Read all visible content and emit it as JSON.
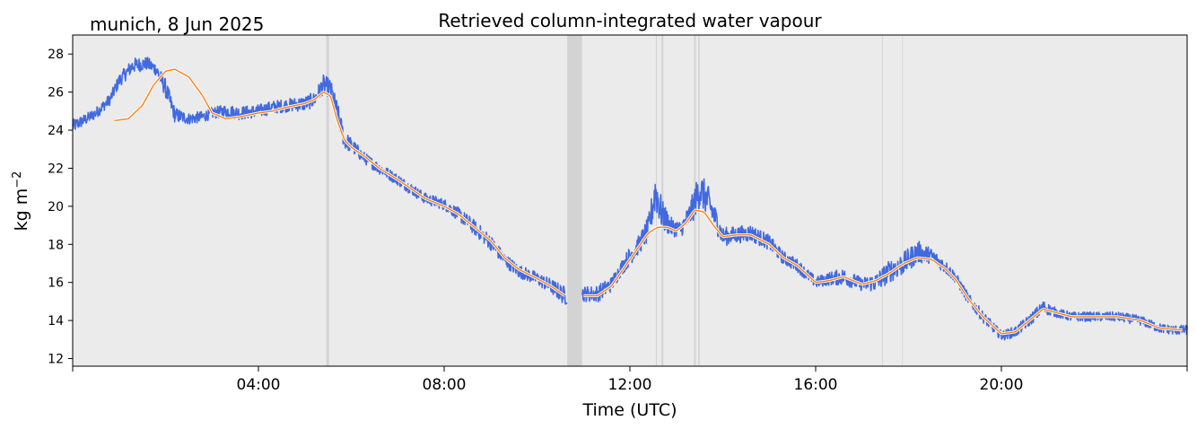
{
  "chart_data": {
    "type": "line",
    "title": "Retrieved column-integrated water vapour",
    "location_label": "munich, 8 Jun 2025",
    "xlabel": "Time (UTC)",
    "ylabel": "kg m",
    "ylabel_sup": "−2",
    "x_unit": "hours UTC",
    "xlim": [
      0,
      24
    ],
    "ylim": [
      11.6,
      29.0
    ],
    "x_ticks": [
      {
        "value": 0,
        "label": ""
      },
      {
        "value": 4,
        "label": "04:00"
      },
      {
        "value": 8,
        "label": "08:00"
      },
      {
        "value": 12,
        "label": "12:00"
      },
      {
        "value": 16,
        "label": "16:00"
      },
      {
        "value": 20,
        "label": "20:00"
      },
      {
        "value": 24,
        "label": ""
      }
    ],
    "y_ticks": [
      12,
      14,
      16,
      18,
      20,
      22,
      24,
      26,
      28
    ],
    "grid": false,
    "background": "#ebebeb",
    "gap_bands": [
      {
        "start": 5.46,
        "end": 5.52,
        "color": "#d3d3d3"
      },
      {
        "start": 10.65,
        "end": 10.97,
        "color": "#d3d3d3"
      },
      {
        "start": 12.56,
        "end": 12.58,
        "color": "#d3d3d3"
      },
      {
        "start": 12.68,
        "end": 12.72,
        "color": "#d3d3d3"
      },
      {
        "start": 13.38,
        "end": 13.42,
        "color": "#d3d3d3"
      },
      {
        "start": 13.47,
        "end": 13.5,
        "color": "#d3d3d3"
      },
      {
        "start": 17.43,
        "end": 17.45,
        "color": "#dadada"
      },
      {
        "start": 17.86,
        "end": 17.88,
        "color": "#dadada"
      }
    ],
    "series": [
      {
        "role": "raw retrievals",
        "color": "#4169e1",
        "x": [
          0.0,
          0.3,
          0.5,
          0.8,
          1.0,
          1.3,
          1.6,
          1.8,
          2.0,
          2.2,
          2.5,
          2.8,
          3.0,
          3.3,
          3.6,
          4.0,
          4.3,
          4.6,
          5.0,
          5.2,
          5.4,
          5.55,
          5.7,
          5.85,
          6.0,
          6.3,
          6.6,
          7.0,
          7.3,
          7.6,
          8.0,
          8.3,
          8.6,
          9.0,
          9.3,
          9.6,
          10.0,
          10.3,
          10.6,
          11.0,
          11.3,
          11.6,
          11.8,
          12.0,
          12.2,
          12.4,
          12.55,
          12.7,
          12.9,
          13.1,
          13.3,
          13.5,
          13.7,
          14.0,
          14.3,
          14.6,
          15.0,
          15.3,
          15.6,
          16.0,
          16.3,
          16.6,
          17.0,
          17.3,
          17.6,
          17.9,
          18.2,
          18.5,
          18.8,
          19.0,
          19.3,
          19.6,
          20.0,
          20.3,
          20.6,
          20.9,
          21.2,
          21.5,
          22.0,
          22.5,
          23.0,
          23.4,
          23.7,
          24.0
        ],
        "y": [
          24.2,
          24.6,
          24.9,
          25.6,
          26.6,
          27.4,
          27.5,
          27.2,
          26.2,
          24.8,
          24.6,
          24.7,
          24.9,
          25.0,
          24.9,
          25.0,
          25.2,
          25.3,
          25.4,
          25.6,
          26.4,
          26.2,
          24.9,
          23.5,
          23.2,
          22.5,
          22.0,
          21.4,
          20.9,
          20.4,
          20.1,
          19.6,
          19.0,
          18.1,
          17.2,
          16.6,
          16.2,
          15.8,
          15.3,
          15.4,
          15.4,
          15.9,
          16.7,
          17.4,
          18.0,
          18.8,
          20.8,
          19.5,
          18.9,
          18.8,
          19.6,
          20.9,
          20.2,
          18.4,
          18.5,
          18.6,
          18.1,
          17.3,
          16.9,
          16.0,
          16.2,
          16.3,
          15.9,
          16.0,
          16.6,
          17.0,
          17.6,
          17.4,
          16.8,
          16.3,
          15.1,
          14.2,
          13.2,
          13.4,
          14.0,
          14.7,
          14.4,
          14.2,
          14.2,
          14.2,
          14.0,
          13.6,
          13.5,
          13.5
        ],
        "noise_amplitude": [
          0.35,
          0.3,
          0.3,
          0.3,
          0.35,
          0.4,
          0.35,
          0.35,
          0.5,
          0.4,
          0.3,
          0.3,
          0.3,
          0.35,
          0.35,
          0.35,
          0.35,
          0.35,
          0.4,
          0.4,
          0.5,
          0.5,
          0.6,
          0.5,
          0.4,
          0.3,
          0.3,
          0.3,
          0.3,
          0.3,
          0.3,
          0.35,
          0.4,
          0.4,
          0.35,
          0.35,
          0.35,
          0.4,
          0.5,
          0.4,
          0.45,
          0.4,
          0.4,
          0.5,
          0.5,
          0.7,
          1.1,
          0.8,
          0.5,
          0.4,
          0.7,
          1.0,
          0.8,
          0.5,
          0.45,
          0.45,
          0.4,
          0.35,
          0.35,
          0.3,
          0.35,
          0.45,
          0.35,
          0.5,
          0.6,
          0.6,
          0.6,
          0.4,
          0.35,
          0.3,
          0.3,
          0.3,
          0.25,
          0.3,
          0.3,
          0.35,
          0.25,
          0.25,
          0.25,
          0.25,
          0.25,
          0.25,
          0.25,
          0.25
        ]
      },
      {
        "role": "smoothed",
        "color": "#ff7f0e",
        "x": [
          0.9,
          1.2,
          1.5,
          1.75,
          2.0,
          2.2,
          2.5,
          2.8,
          3.0,
          3.3,
          3.6,
          4.0,
          4.3,
          4.6,
          5.0,
          5.2,
          5.4,
          5.55,
          5.7,
          5.85,
          6.0,
          6.3,
          6.6,
          7.0,
          7.3,
          7.6,
          8.0,
          8.3,
          8.6,
          9.0,
          9.3,
          9.6,
          10.0,
          10.3,
          10.6
        ],
        "y": [
          24.5,
          24.6,
          25.3,
          26.4,
          27.1,
          27.2,
          26.8,
          25.8,
          24.9,
          24.6,
          24.7,
          24.9,
          25.0,
          25.2,
          25.4,
          25.6,
          26.0,
          25.8,
          24.5,
          23.5,
          23.1,
          22.6,
          22.0,
          21.4,
          20.9,
          20.4,
          20.0,
          19.6,
          19.0,
          18.2,
          17.3,
          16.7,
          16.2,
          15.8,
          15.3
        ]
      },
      {
        "role": "smoothed",
        "color": "#ff7f0e",
        "x": [
          11.0,
          11.3,
          11.6,
          11.8,
          12.0,
          12.2,
          12.4,
          12.6,
          12.8,
          13.0,
          13.2,
          13.4,
          13.6,
          13.8,
          14.0,
          14.3,
          14.6,
          15.0,
          15.3,
          15.6,
          16.0,
          16.3,
          16.6,
          17.0,
          17.3,
          17.6,
          17.9,
          18.2,
          18.5,
          18.8,
          19.0,
          19.3,
          19.6,
          20.0,
          20.3,
          20.6,
          20.9,
          21.2,
          21.5,
          22.0,
          22.5,
          23.0,
          23.4,
          23.9
        ],
        "y": [
          15.3,
          15.3,
          15.8,
          16.5,
          17.2,
          17.9,
          18.6,
          18.9,
          18.9,
          18.7,
          19.1,
          19.8,
          19.7,
          19.0,
          18.4,
          18.5,
          18.5,
          18.0,
          17.3,
          16.9,
          16.0,
          16.1,
          16.3,
          15.9,
          16.1,
          16.5,
          17.0,
          17.3,
          17.2,
          16.7,
          16.2,
          15.1,
          14.2,
          13.3,
          13.4,
          14.0,
          14.6,
          14.4,
          14.2,
          14.2,
          14.2,
          14.0,
          13.6,
          13.5
        ]
      }
    ]
  }
}
